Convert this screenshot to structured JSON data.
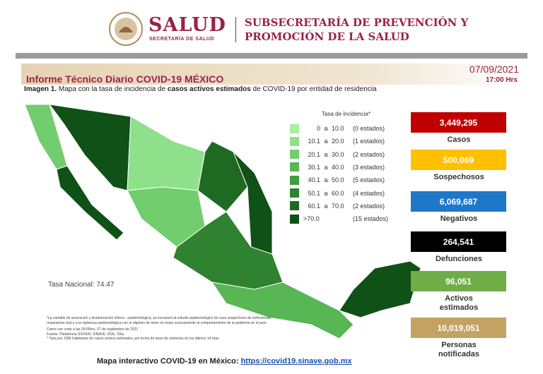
{
  "header": {
    "brand": "SALUD",
    "brand_sub": "SECRETARÍA DE SALUD",
    "subsecretaria": [
      "SUBSECRETARÍA DE PREVENCIÓN Y",
      "PROMOCIÓN DE LA SALUD"
    ]
  },
  "report": {
    "title": "Informe Técnico Diario COVID-19 MÉXICO",
    "date": "07/09/2021",
    "time": "17:00 Hrs",
    "subtitle": [
      "Imagen 1.",
      " Mapa con la tasa de incidencia de ",
      "casos activos estimados",
      " de COVID-19 por entidad de residencia"
    ]
  },
  "legend": {
    "title": "Tasa de incidencia*",
    "rows": [
      {
        "from": "0",
        "sep": "a",
        "to": "10.0",
        "count": "(0 estados)",
        "color": "#a9efa1"
      },
      {
        "from": "10.1",
        "sep": "a",
        "to": "20.0",
        "count": "(1 estados)",
        "color": "#8fe08a"
      },
      {
        "from": "20.1",
        "sep": "a",
        "to": "30.0",
        "count": "(2 estados)",
        "color": "#72cd6e"
      },
      {
        "from": "30.1",
        "sep": "a",
        "to": "40.0",
        "count": "(3 estados)",
        "color": "#58b655"
      },
      {
        "from": "40.1",
        "sep": "a",
        "to": "50.0",
        "count": "(5 estados)",
        "color": "#429c40"
      },
      {
        "from": "50.1",
        "sep": "a",
        "to": "60.0",
        "count": "(4 estados)",
        "color": "#2f8230"
      },
      {
        "from": "60.1",
        "sep": "a",
        "to": "70.0",
        "count": "(2 estados)",
        "color": "#1f6a22"
      },
      {
        "from": ">70.0",
        "count": "(15 estados)",
        "color": "#0f5117"
      }
    ]
  },
  "national_rate": "Tasa Nacional: 74.47",
  "notes": [
    "*La variable de asociación y dictaminación clínica - epidemiológica, se incorporó al estudio epidemiológico de caso sospechoso de enfermedad respiratoria viral y a la vigilancia epidemiológica con el objetivo de tener un mejor acercamiento al comportamiento de la epidemia en el país.",
    "Cierre con corte a las 09:00hrs, 07 de septiembre de 2021",
    "Fuente: Plataforma SISVER, SINAVE, DGE, SSa.",
    "* Tasa por 100k habitantes de casos activos estimados, por fecha de inicio de síntomas en los últimos 14 días."
  ],
  "stats": [
    {
      "value": "3,449,295",
      "label": [
        "Casos"
      ],
      "color": "#c00000"
    },
    {
      "value": "500,069",
      "label": [
        "Sospechosos"
      ],
      "color": "#ffc000"
    },
    {
      "value": "6,069,687",
      "label": [
        "Negativos"
      ],
      "color": "#1f77c9"
    },
    {
      "value": "264,541",
      "label": [
        "Defunciones"
      ],
      "color": "#000000"
    },
    {
      "value": "96,051",
      "label": [
        "Activos",
        "estimados"
      ],
      "color": "#70ad47"
    },
    {
      "value": "10,019,051",
      "label": [
        "Personas",
        "notificadas"
      ],
      "color": "#c3a264"
    }
  ],
  "footer": {
    "text": "Mapa interactivo COVID-19 en México:",
    "link": "https://covid19.sinave.gob.mx"
  }
}
